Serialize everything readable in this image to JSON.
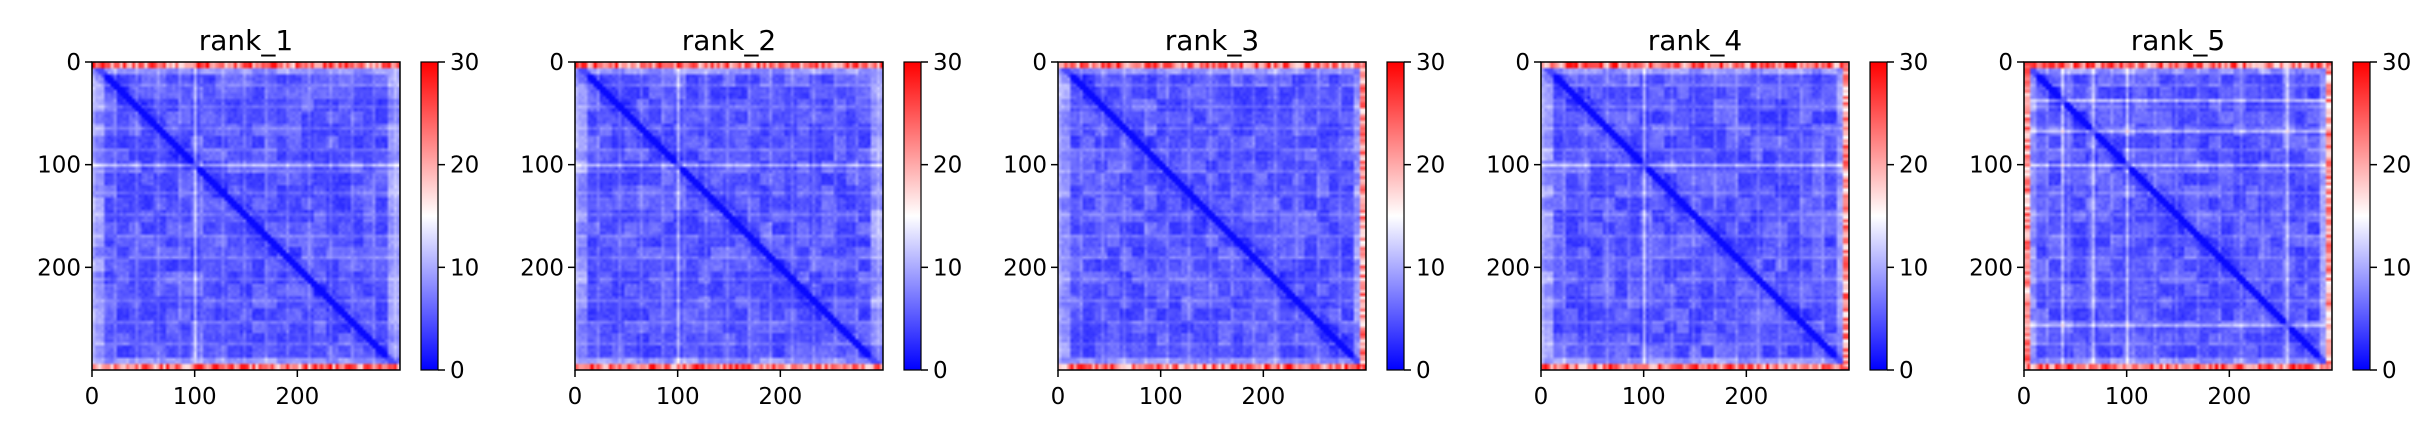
{
  "chart_data": [
    {
      "type": "heatmap",
      "title": "rank_1",
      "x_ticks": [
        "0",
        "100",
        "200"
      ],
      "y_ticks": [
        "0",
        "100",
        "200"
      ],
      "colorbar_ticks": [
        "0",
        "10",
        "20",
        "30"
      ],
      "n": 300,
      "vmin": 0,
      "vmax": 30,
      "colormap": "bwr",
      "colors": {
        "low": "#0000ff",
        "mid": "#ffffff",
        "high": "#ff0000"
      },
      "bright_bands": [
        100
      ],
      "edge_bands": [
        "top",
        "bottom"
      ]
    },
    {
      "type": "heatmap",
      "title": "rank_2",
      "x_ticks": [
        "0",
        "100",
        "200"
      ],
      "y_ticks": [
        "0",
        "100",
        "200"
      ],
      "colorbar_ticks": [
        "0",
        "10",
        "20",
        "30"
      ],
      "n": 300,
      "vmin": 0,
      "vmax": 30,
      "colormap": "bwr",
      "colors": {
        "low": "#0000ff",
        "mid": "#ffffff",
        "high": "#ff0000"
      },
      "bright_bands": [
        100
      ],
      "edge_bands": [
        "top",
        "bottom"
      ]
    },
    {
      "type": "heatmap",
      "title": "rank_3",
      "x_ticks": [
        "0",
        "100",
        "200"
      ],
      "y_ticks": [
        "0",
        "100",
        "200"
      ],
      "colorbar_ticks": [
        "0",
        "10",
        "20",
        "30"
      ],
      "n": 300,
      "vmin": 0,
      "vmax": 30,
      "colormap": "bwr",
      "colors": {
        "low": "#0000ff",
        "mid": "#ffffff",
        "high": "#ff0000"
      },
      "bright_bands": [],
      "edge_bands": [
        "top",
        "bottom",
        "right"
      ]
    },
    {
      "type": "heatmap",
      "title": "rank_4",
      "x_ticks": [
        "0",
        "100",
        "200"
      ],
      "y_ticks": [
        "0",
        "100",
        "200"
      ],
      "colorbar_ticks": [
        "0",
        "10",
        "20",
        "30"
      ],
      "n": 300,
      "vmin": 0,
      "vmax": 30,
      "colormap": "bwr",
      "colors": {
        "low": "#0000ff",
        "mid": "#ffffff",
        "high": "#ff0000"
      },
      "bright_bands": [
        100
      ],
      "edge_bands": [
        "top",
        "bottom",
        "right"
      ]
    },
    {
      "type": "heatmap",
      "title": "rank_5",
      "x_ticks": [
        "0",
        "100",
        "200"
      ],
      "y_ticks": [
        "0",
        "100",
        "200"
      ],
      "colorbar_ticks": [
        "0",
        "10",
        "20",
        "30"
      ],
      "n": 300,
      "vmin": 0,
      "vmax": 30,
      "colormap": "bwr",
      "colors": {
        "low": "#0000ff",
        "mid": "#ffffff",
        "high": "#ff0000"
      },
      "bright_bands": [
        35,
        65,
        100,
        255
      ],
      "edge_bands": [
        "top",
        "bottom",
        "left",
        "right"
      ]
    }
  ]
}
